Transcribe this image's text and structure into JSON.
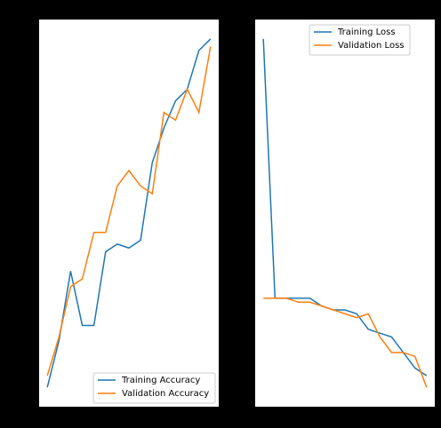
{
  "chart_data": [
    {
      "type": "line",
      "x": [
        0,
        1,
        2,
        3,
        4,
        5,
        6,
        7,
        8,
        9,
        10,
        11,
        12,
        13,
        14
      ],
      "xlim": [
        -0.7,
        14.7
      ],
      "ylim": [
        0,
        1
      ],
      "legend": "lower right",
      "series": [
        {
          "name": "Training Accuracy",
          "color": "#1f77b4",
          "values": [
            0.05,
            0.17,
            0.35,
            0.21,
            0.21,
            0.4,
            0.42,
            0.41,
            0.43,
            0.63,
            0.72,
            0.79,
            0.82,
            0.92,
            0.95
          ]
        },
        {
          "name": "Validation Accuracy",
          "color": "#ff7f0e",
          "values": [
            0.08,
            0.18,
            0.31,
            0.33,
            0.45,
            0.45,
            0.57,
            0.61,
            0.57,
            0.55,
            0.76,
            0.74,
            0.82,
            0.76,
            0.93
          ]
        }
      ]
    },
    {
      "type": "line",
      "x": [
        0,
        1,
        2,
        3,
        4,
        5,
        6,
        7,
        8,
        9,
        10,
        11,
        12,
        13,
        14
      ],
      "xlim": [
        -0.7,
        14.7
      ],
      "ylim": [
        0,
        1
      ],
      "legend": "upper right",
      "series": [
        {
          "name": "Training Loss",
          "color": "#1f77b4",
          "values": [
            0.95,
            0.28,
            0.28,
            0.28,
            0.28,
            0.26,
            0.25,
            0.25,
            0.24,
            0.2,
            0.19,
            0.18,
            0.14,
            0.1,
            0.08
          ]
        },
        {
          "name": "Validation Loss",
          "color": "#ff7f0e",
          "values": [
            0.28,
            0.28,
            0.28,
            0.27,
            0.27,
            0.26,
            0.25,
            0.24,
            0.23,
            0.24,
            0.18,
            0.14,
            0.14,
            0.13,
            0.05
          ]
        }
      ]
    }
  ]
}
